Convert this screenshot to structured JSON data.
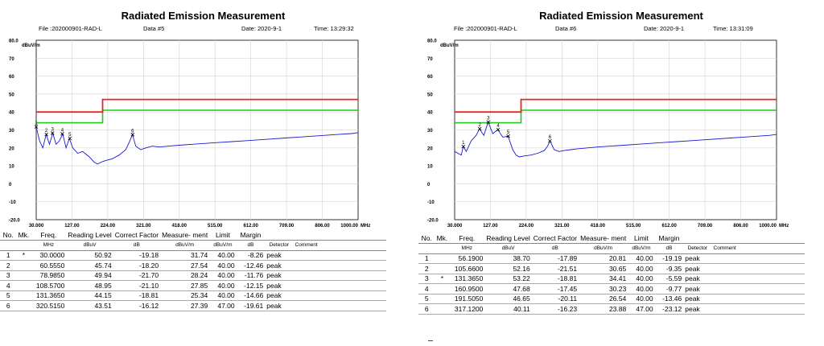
{
  "reports": [
    {
      "title": "Radiated Emission Measurement",
      "file": "File :202000901-RAD-L",
      "data_no": "Data #5",
      "date": "Date: 2020-9-1",
      "time": "Time: 13:29:32",
      "table": {
        "headers": [
          "No.",
          "Mk.",
          "Freq.",
          "Reading Level",
          "Correct Factor",
          "Measure- ment",
          "Limit",
          "Margin",
          "",
          ""
        ],
        "units": [
          "",
          "",
          "MHz",
          "dBuV",
          "dB",
          "dBuV/m",
          "dBuV/m",
          "dB",
          "Detector",
          "Comment"
        ],
        "rows": [
          [
            "1",
            "*",
            "30.0000",
            "50.92",
            "-19.18",
            "31.74",
            "40.00",
            "-8.26",
            "peak",
            ""
          ],
          [
            "2",
            "",
            "60.5550",
            "45.74",
            "-18.20",
            "27.54",
            "40.00",
            "-12.46",
            "peak",
            ""
          ],
          [
            "3",
            "",
            "78.9850",
            "49.94",
            "-21.70",
            "28.24",
            "40.00",
            "-11.76",
            "peak",
            ""
          ],
          [
            "4",
            "",
            "108.5700",
            "48.95",
            "-21.10",
            "27.85",
            "40.00",
            "-12.15",
            "peak",
            ""
          ],
          [
            "5",
            "",
            "131.3650",
            "44.15",
            "-18.81",
            "25.34",
            "40.00",
            "-14.66",
            "peak",
            ""
          ],
          [
            "6",
            "",
            "320.5150",
            "43.51",
            "-16.12",
            "27.39",
            "47.00",
            "-19.61",
            "peak",
            ""
          ]
        ]
      }
    },
    {
      "title": "Radiated Emission Measurement",
      "file": "File :202000901-RAD-L",
      "data_no": "Data #6",
      "date": "Date: 2020-9-1",
      "time": "Time: 13:31:09",
      "table": {
        "headers": [
          "No.",
          "Mk.",
          "Freq.",
          "Reading Level",
          "Correct Factor",
          "Measure- ment",
          "Limit",
          "Margin",
          "",
          ""
        ],
        "units": [
          "",
          "",
          "MHz",
          "dBuV",
          "dB",
          "dBuV/m",
          "dBuV/m",
          "dB",
          "Detector",
          "Comment"
        ],
        "rows": [
          [
            "1",
            "",
            "56.1900",
            "38.70",
            "-17.89",
            "20.81",
            "40.00",
            "-19.19",
            "peak",
            ""
          ],
          [
            "2",
            "",
            "105.6600",
            "52.16",
            "-21.51",
            "30.65",
            "40.00",
            "-9.35",
            "peak",
            ""
          ],
          [
            "3",
            "*",
            "131.3650",
            "53.22",
            "-18.81",
            "34.41",
            "40.00",
            "-5.59",
            "peak",
            ""
          ],
          [
            "4",
            "",
            "160.9500",
            "47.68",
            "-17.45",
            "30.23",
            "40.00",
            "-9.77",
            "peak",
            ""
          ],
          [
            "5",
            "",
            "191.5050",
            "46.65",
            "-20.11",
            "26.54",
            "40.00",
            "-13.46",
            "peak",
            ""
          ],
          [
            "6",
            "",
            "317.1200",
            "40.11",
            "-16.23",
            "23.88",
            "47.00",
            "-23.12",
            "peak",
            ""
          ]
        ]
      }
    }
  ],
  "chart_data": [
    {
      "type": "line",
      "title": "Radiated Emission Measurement",
      "ylabel": "dBuV/m",
      "xunit": "MHz",
      "ylim": [
        -20,
        80
      ],
      "xlim": [
        30,
        1000
      ],
      "y_ticks": [
        "80.0",
        "70",
        "60",
        "50",
        "40",
        "30",
        "20",
        "10",
        "0",
        "-10",
        "-20.0"
      ],
      "x_ticks": [
        "30.000",
        "127.00",
        "224.00",
        "321.00",
        "418.00",
        "515.00",
        "612.00",
        "709.00",
        "806.00",
        "1000.00"
      ],
      "grid": true,
      "colors": {
        "limit": "#e8241c",
        "margin_line": "#1ec81e",
        "trace": "#1a1acc"
      },
      "limit_line": {
        "x": [
          30,
          230,
          230,
          1000
        ],
        "y": [
          40,
          40,
          47,
          47
        ]
      },
      "margin_line": {
        "x": [
          30,
          230,
          230,
          1000
        ],
        "y": [
          34,
          34,
          41,
          41
        ]
      },
      "series": [
        {
          "x": [
            30,
            40,
            50,
            60,
            70,
            80,
            90,
            100,
            110,
            120,
            130,
            140,
            155,
            170,
            190,
            205,
            215,
            225,
            240,
            260,
            280,
            300,
            310,
            320,
            330,
            345,
            360,
            380,
            400,
            430,
            460,
            500,
            540,
            580,
            620,
            660,
            700,
            740,
            780,
            820,
            860,
            900,
            940,
            980,
            1000
          ],
          "y": [
            31.7,
            24,
            20,
            27.5,
            22,
            28.2,
            22,
            24,
            27.8,
            20,
            25.3,
            20,
            17,
            18,
            15,
            12,
            11,
            12,
            13,
            14,
            16,
            19,
            23,
            27.4,
            21,
            19,
            20,
            21,
            20.5,
            21,
            21.5,
            22,
            22.5,
            23,
            23.5,
            24,
            24.5,
            25,
            25.5,
            26,
            26.5,
            27,
            27.5,
            28,
            28.5
          ]
        }
      ],
      "markers": [
        {
          "label": "1",
          "x": 30.0,
          "y": 31.74
        },
        {
          "label": "2",
          "x": 60.555,
          "y": 27.54
        },
        {
          "label": "3",
          "x": 78.985,
          "y": 28.24
        },
        {
          "label": "4",
          "x": 108.57,
          "y": 27.85
        },
        {
          "label": "5",
          "x": 131.365,
          "y": 25.34
        },
        {
          "label": "6",
          "x": 320.515,
          "y": 27.39
        }
      ]
    },
    {
      "type": "line",
      "title": "Radiated Emission Measurement",
      "ylabel": "dBuV/m",
      "xunit": "MHz",
      "ylim": [
        -20,
        80
      ],
      "xlim": [
        30,
        1000
      ],
      "y_ticks": [
        "80.0",
        "70",
        "60",
        "50",
        "40",
        "30",
        "20",
        "10",
        "0",
        "-10",
        "-20.0"
      ],
      "x_ticks": [
        "30.000",
        "127.00",
        "224.00",
        "321.00",
        "418.00",
        "515.00",
        "612.00",
        "709.00",
        "806.00",
        "1000.00"
      ],
      "grid": true,
      "colors": {
        "limit": "#e8241c",
        "margin_line": "#1ec81e",
        "trace": "#1a1acc"
      },
      "limit_line": {
        "x": [
          30,
          230,
          230,
          1000
        ],
        "y": [
          40,
          40,
          47,
          47
        ]
      },
      "margin_line": {
        "x": [
          30,
          230,
          230,
          1000
        ],
        "y": [
          34,
          34,
          41,
          41
        ]
      },
      "series": [
        {
          "x": [
            30,
            40,
            50,
            56,
            65,
            80,
            95,
            105,
            118,
            131,
            145,
            160,
            175,
            191,
            205,
            215,
            225,
            240,
            260,
            280,
            300,
            310,
            317,
            330,
            345,
            360,
            380,
            400,
            430,
            460,
            500,
            540,
            580,
            620,
            660,
            700,
            740,
            780,
            820,
            860,
            900,
            940,
            980,
            1000
          ],
          "y": [
            18,
            17,
            16,
            20.8,
            18,
            24,
            27,
            30.6,
            27,
            34.4,
            28,
            30.2,
            26,
            26.5,
            19,
            16,
            15,
            15.5,
            16,
            17,
            18.5,
            21,
            23.9,
            19,
            18,
            18.5,
            19,
            19.5,
            20,
            20.5,
            21,
            21.5,
            22,
            22.5,
            23,
            23.5,
            24,
            24.5,
            25,
            25.5,
            26,
            26.5,
            27,
            27.5
          ]
        }
      ],
      "markers": [
        {
          "label": "1",
          "x": 56.19,
          "y": 20.81
        },
        {
          "label": "2",
          "x": 105.66,
          "y": 30.65
        },
        {
          "label": "3",
          "x": 131.365,
          "y": 34.41
        },
        {
          "label": "4",
          "x": 160.95,
          "y": 30.23
        },
        {
          "label": "5",
          "x": 191.505,
          "y": 26.54
        },
        {
          "label": "6",
          "x": 317.12,
          "y": 23.88
        }
      ]
    }
  ]
}
